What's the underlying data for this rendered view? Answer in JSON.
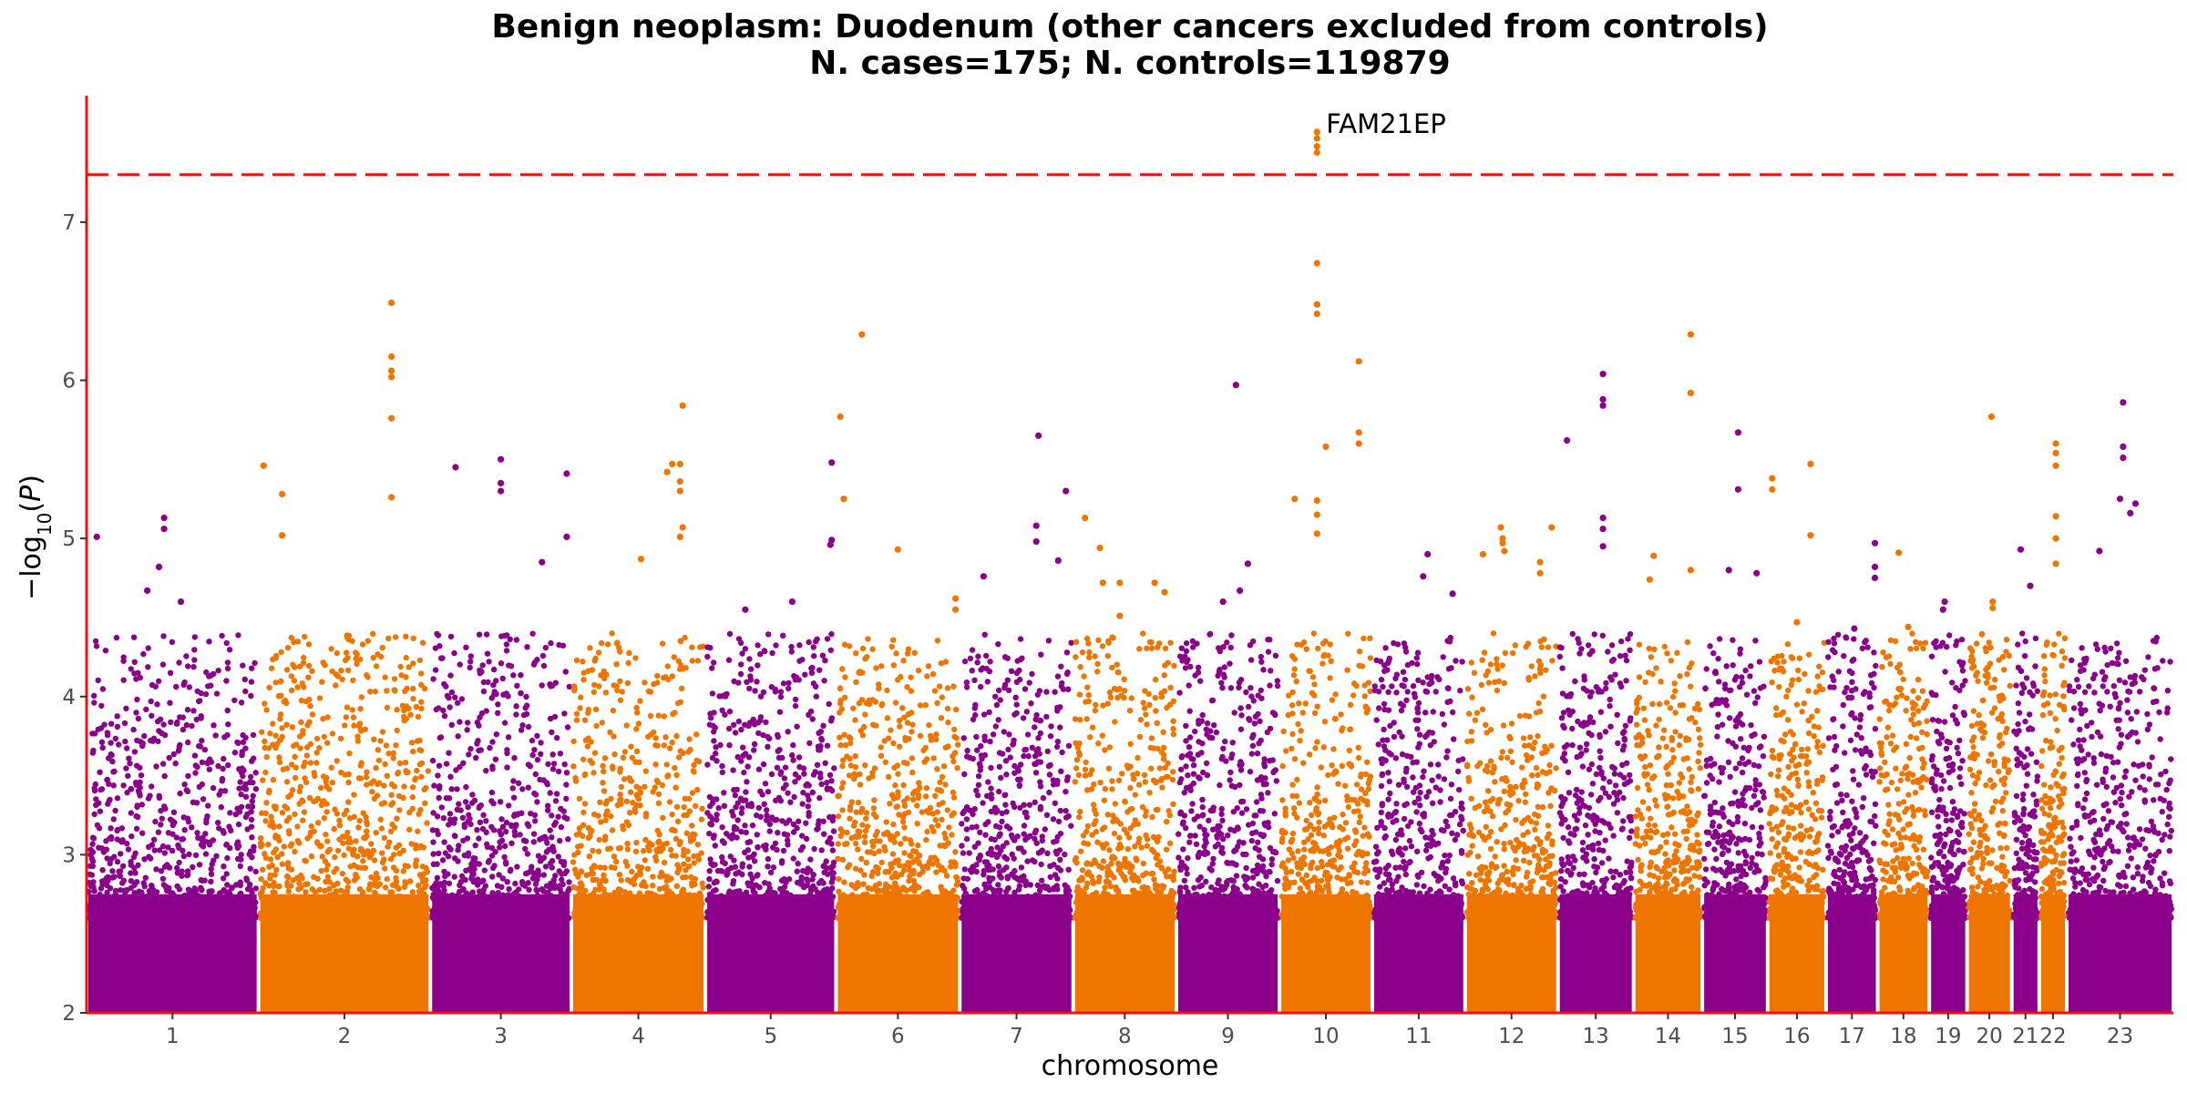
{
  "chart_data": {
    "type": "scatter",
    "subtype": "manhattan",
    "title": "Benign neoplasm: Duodenum (other cancers excluded from controls)",
    "subtitle": "N. cases=175; N. controls=119879",
    "xlabel": "chromosome",
    "ylabel": "−log10(P)",
    "ylabel_parts": {
      "prefix": "−log",
      "sub": "10",
      "paren_open": "(",
      "var": "P",
      "paren_close": ")"
    },
    "ylim": [
      2,
      7.8
    ],
    "yticks": [
      2,
      3,
      4,
      5,
      6,
      7
    ],
    "significance_line": 7.3,
    "colors": {
      "odd": "#8b008b",
      "even": "#ee7600",
      "significance_line": "#ee1111",
      "axis": "#ee1111"
    },
    "chromosomes": [
      {
        "label": "1",
        "width": 1.0,
        "peak": 5.13,
        "top": [
          {
            "x": 0.45,
            "y": 5.13
          },
          {
            "x": 0.45,
            "y": 5.06
          },
          {
            "x": 0.05,
            "y": 5.01
          },
          {
            "x": 0.42,
            "y": 4.82
          },
          {
            "x": 0.35,
            "y": 4.67
          },
          {
            "x": 0.55,
            "y": 4.6
          }
        ]
      },
      {
        "label": "2",
        "width": 1.0,
        "peak": 6.49,
        "top": [
          {
            "x": 0.78,
            "y": 6.49
          },
          {
            "x": 0.78,
            "y": 6.15
          },
          {
            "x": 0.78,
            "y": 6.06
          },
          {
            "x": 0.78,
            "y": 6.02
          },
          {
            "x": 0.78,
            "y": 5.76
          },
          {
            "x": 0.78,
            "y": 5.26
          },
          {
            "x": 0.02,
            "y": 5.46
          },
          {
            "x": 0.13,
            "y": 5.28
          },
          {
            "x": 0.13,
            "y": 5.02
          }
        ]
      },
      {
        "label": "3",
        "width": 0.82,
        "peak": 5.5,
        "top": [
          {
            "x": 0.5,
            "y": 5.5
          },
          {
            "x": 0.5,
            "y": 5.35
          },
          {
            "x": 0.5,
            "y": 5.3
          },
          {
            "x": 0.17,
            "y": 5.45
          },
          {
            "x": 0.98,
            "y": 5.41
          },
          {
            "x": 0.98,
            "y": 5.01
          },
          {
            "x": 0.8,
            "y": 4.85
          }
        ]
      },
      {
        "label": "4",
        "width": 0.78,
        "peak": 5.84,
        "top": [
          {
            "x": 0.84,
            "y": 5.84
          },
          {
            "x": 0.76,
            "y": 5.47
          },
          {
            "x": 0.82,
            "y": 5.47
          },
          {
            "x": 0.72,
            "y": 5.42
          },
          {
            "x": 0.82,
            "y": 5.36
          },
          {
            "x": 0.82,
            "y": 5.3
          },
          {
            "x": 0.84,
            "y": 5.07
          },
          {
            "x": 0.82,
            "y": 5.01
          },
          {
            "x": 0.52,
            "y": 4.87
          }
        ]
      },
      {
        "label": "5",
        "width": 0.76,
        "peak": 5.48,
        "top": [
          {
            "x": 0.98,
            "y": 5.48
          },
          {
            "x": 0.98,
            "y": 4.99
          },
          {
            "x": 0.97,
            "y": 4.96
          },
          {
            "x": 0.67,
            "y": 4.6
          },
          {
            "x": 0.3,
            "y": 4.55
          }
        ]
      },
      {
        "label": "6",
        "width": 0.72,
        "peak": 6.29,
        "top": [
          {
            "x": 0.2,
            "y": 6.29
          },
          {
            "x": 0.02,
            "y": 5.77
          },
          {
            "x": 0.05,
            "y": 5.25
          },
          {
            "x": 0.5,
            "y": 4.93
          },
          {
            "x": 0.98,
            "y": 4.62
          },
          {
            "x": 0.98,
            "y": 4.55
          }
        ]
      },
      {
        "label": "7",
        "width": 0.66,
        "peak": 5.65,
        "top": [
          {
            "x": 0.7,
            "y": 5.65
          },
          {
            "x": 0.68,
            "y": 5.08
          },
          {
            "x": 0.68,
            "y": 4.98
          },
          {
            "x": 0.95,
            "y": 5.3
          },
          {
            "x": 0.88,
            "y": 4.86
          },
          {
            "x": 0.2,
            "y": 4.76
          }
        ]
      },
      {
        "label": "8",
        "width": 0.6,
        "peak": 5.13,
        "top": [
          {
            "x": 0.1,
            "y": 5.13
          },
          {
            "x": 0.25,
            "y": 4.94
          },
          {
            "x": 0.28,
            "y": 4.72
          },
          {
            "x": 0.45,
            "y": 4.72
          },
          {
            "x": 0.45,
            "y": 4.51
          },
          {
            "x": 0.8,
            "y": 4.72
          },
          {
            "x": 0.9,
            "y": 4.66
          }
        ]
      },
      {
        "label": "9",
        "width": 0.6,
        "peak": 5.97,
        "top": [
          {
            "x": 0.58,
            "y": 5.97
          },
          {
            "x": 0.7,
            "y": 4.84
          },
          {
            "x": 0.62,
            "y": 4.67
          },
          {
            "x": 0.45,
            "y": 4.6
          }
        ]
      },
      {
        "label": "10",
        "width": 0.54,
        "peak": 7.57,
        "top": [
          {
            "x": 0.4,
            "y": 7.57
          },
          {
            "x": 0.4,
            "y": 7.53
          },
          {
            "x": 0.4,
            "y": 7.48
          },
          {
            "x": 0.4,
            "y": 7.44
          },
          {
            "x": 0.4,
            "y": 6.74
          },
          {
            "x": 0.4,
            "y": 6.48
          },
          {
            "x": 0.4,
            "y": 6.42
          },
          {
            "x": 0.87,
            "y": 6.12
          },
          {
            "x": 0.87,
            "y": 5.67
          },
          {
            "x": 0.87,
            "y": 5.6
          },
          {
            "x": 0.5,
            "y": 5.58
          },
          {
            "x": 0.15,
            "y": 5.25
          },
          {
            "x": 0.4,
            "y": 5.24
          },
          {
            "x": 0.4,
            "y": 5.15
          },
          {
            "x": 0.4,
            "y": 5.03
          }
        ]
      },
      {
        "label": "11",
        "width": 0.54,
        "peak": 4.9,
        "top": [
          {
            "x": 0.6,
            "y": 4.9
          },
          {
            "x": 0.55,
            "y": 4.76
          },
          {
            "x": 0.88,
            "y": 4.65
          }
        ]
      },
      {
        "label": "12",
        "width": 0.54,
        "peak": 5.07,
        "top": [
          {
            "x": 0.38,
            "y": 5.07
          },
          {
            "x": 0.4,
            "y": 5.0
          },
          {
            "x": 0.4,
            "y": 4.97
          },
          {
            "x": 0.42,
            "y": 4.92
          },
          {
            "x": 0.95,
            "y": 5.07
          },
          {
            "x": 0.82,
            "y": 4.85
          },
          {
            "x": 0.82,
            "y": 4.78
          },
          {
            "x": 0.18,
            "y": 4.9
          }
        ]
      },
      {
        "label": "13",
        "width": 0.44,
        "peak": 6.04,
        "top": [
          {
            "x": 0.6,
            "y": 6.04
          },
          {
            "x": 0.6,
            "y": 5.88
          },
          {
            "x": 0.6,
            "y": 5.84
          },
          {
            "x": 0.1,
            "y": 5.62
          },
          {
            "x": 0.6,
            "y": 5.13
          },
          {
            "x": 0.6,
            "y": 5.06
          },
          {
            "x": 0.6,
            "y": 4.95
          }
        ]
      },
      {
        "label": "14",
        "width": 0.4,
        "peak": 6.29,
        "top": [
          {
            "x": 0.85,
            "y": 6.29
          },
          {
            "x": 0.85,
            "y": 5.92
          },
          {
            "x": 0.28,
            "y": 4.89
          },
          {
            "x": 0.22,
            "y": 4.74
          },
          {
            "x": 0.85,
            "y": 4.8
          }
        ]
      },
      {
        "label": "15",
        "width": 0.38,
        "peak": 5.67,
        "top": [
          {
            "x": 0.55,
            "y": 5.67
          },
          {
            "x": 0.55,
            "y": 5.31
          },
          {
            "x": 0.4,
            "y": 4.8
          },
          {
            "x": 0.85,
            "y": 4.78
          }
        ]
      },
      {
        "label": "16",
        "width": 0.34,
        "peak": 5.47,
        "top": [
          {
            "x": 0.05,
            "y": 5.38
          },
          {
            "x": 0.05,
            "y": 5.31
          },
          {
            "x": 0.75,
            "y": 5.47
          },
          {
            "x": 0.75,
            "y": 5.02
          },
          {
            "x": 0.5,
            "y": 4.47
          }
        ]
      },
      {
        "label": "17",
        "width": 0.3,
        "peak": 4.97,
        "top": [
          {
            "x": 0.98,
            "y": 4.97
          },
          {
            "x": 0.98,
            "y": 4.75
          },
          {
            "x": 0.98,
            "y": 4.82
          },
          {
            "x": 0.55,
            "y": 4.43
          }
        ]
      },
      {
        "label": "18",
        "width": 0.3,
        "peak": 4.91,
        "top": [
          {
            "x": 0.4,
            "y": 4.91
          },
          {
            "x": 0.6,
            "y": 4.44
          }
        ]
      },
      {
        "label": "19",
        "width": 0.22,
        "peak": 4.6,
        "top": [
          {
            "x": 0.4,
            "y": 4.6
          },
          {
            "x": 0.35,
            "y": 4.55
          }
        ]
      },
      {
        "label": "20",
        "width": 0.26,
        "peak": 5.77,
        "top": [
          {
            "x": 0.55,
            "y": 5.77
          },
          {
            "x": 0.58,
            "y": 4.6
          },
          {
            "x": 0.58,
            "y": 4.56
          }
        ]
      },
      {
        "label": "21",
        "width": 0.16,
        "peak": 4.93,
        "top": [
          {
            "x": 0.3,
            "y": 4.93
          },
          {
            "x": 0.7,
            "y": 4.7
          }
        ]
      },
      {
        "label": "22",
        "width": 0.16,
        "peak": 5.6,
        "top": [
          {
            "x": 0.62,
            "y": 5.6
          },
          {
            "x": 0.62,
            "y": 5.54
          },
          {
            "x": 0.62,
            "y": 5.46
          },
          {
            "x": 0.62,
            "y": 5.14
          },
          {
            "x": 0.62,
            "y": 5.0
          },
          {
            "x": 0.62,
            "y": 4.84
          }
        ]
      },
      {
        "label": "23",
        "width": 0.62,
        "peak": 5.86,
        "top": [
          {
            "x": 0.53,
            "y": 5.86
          },
          {
            "x": 0.53,
            "y": 5.58
          },
          {
            "x": 0.53,
            "y": 5.51
          },
          {
            "x": 0.5,
            "y": 5.25
          },
          {
            "x": 0.65,
            "y": 5.22
          },
          {
            "x": 0.6,
            "y": 5.16
          },
          {
            "x": 0.3,
            "y": 4.92
          }
        ]
      }
    ],
    "annotations": [
      {
        "label": "FAM21EP",
        "chromosome": "10",
        "y": 7.57
      }
    ]
  }
}
